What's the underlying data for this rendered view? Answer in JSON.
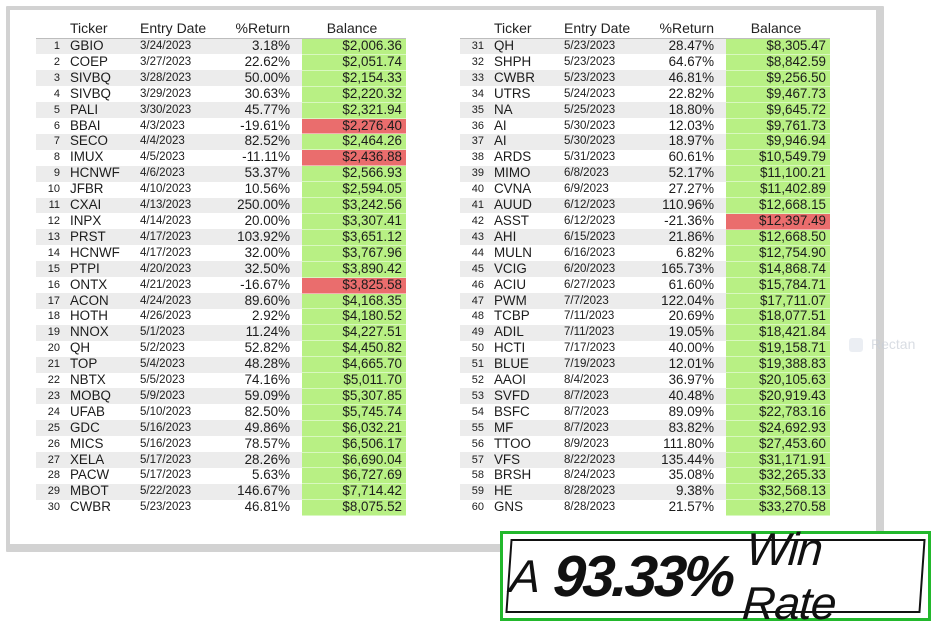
{
  "headers": {
    "ticker": "Ticker",
    "entry_date": "Entry Date",
    "return": "%Return",
    "balance": "Balance"
  },
  "left_rows": [
    {
      "n": "1",
      "ticker": "GBIO",
      "date": "3/24/2023",
      "ret": "3.18%",
      "bal": "$2,006.36",
      "status": "pos"
    },
    {
      "n": "2",
      "ticker": "COEP",
      "date": "3/27/2023",
      "ret": "22.62%",
      "bal": "$2,051.74",
      "status": "pos"
    },
    {
      "n": "3",
      "ticker": "SIVBQ",
      "date": "3/28/2023",
      "ret": "50.00%",
      "bal": "$2,154.33",
      "status": "pos"
    },
    {
      "n": "4",
      "ticker": "SIVBQ",
      "date": "3/29/2023",
      "ret": "30.63%",
      "bal": "$2,220.32",
      "status": "pos"
    },
    {
      "n": "5",
      "ticker": "PALI",
      "date": "3/30/2023",
      "ret": "45.77%",
      "bal": "$2,321.94",
      "status": "pos"
    },
    {
      "n": "6",
      "ticker": "BBAI",
      "date": "4/3/2023",
      "ret": "-19.61%",
      "bal": "$2,276.40",
      "status": "neg"
    },
    {
      "n": "7",
      "ticker": "SECO",
      "date": "4/4/2023",
      "ret": "82.52%",
      "bal": "$2,464.26",
      "status": "pos"
    },
    {
      "n": "8",
      "ticker": "IMUX",
      "date": "4/5/2023",
      "ret": "-11.11%",
      "bal": "$2,436.88",
      "status": "neg"
    },
    {
      "n": "9",
      "ticker": "HCNWF",
      "date": "4/6/2023",
      "ret": "53.37%",
      "bal": "$2,566.93",
      "status": "pos"
    },
    {
      "n": "10",
      "ticker": "JFBR",
      "date": "4/10/2023",
      "ret": "10.56%",
      "bal": "$2,594.05",
      "status": "pos"
    },
    {
      "n": "11",
      "ticker": "CXAI",
      "date": "4/13/2023",
      "ret": "250.00%",
      "bal": "$3,242.56",
      "status": "pos"
    },
    {
      "n": "12",
      "ticker": "INPX",
      "date": "4/14/2023",
      "ret": "20.00%",
      "bal": "$3,307.41",
      "status": "pos"
    },
    {
      "n": "13",
      "ticker": "PRST",
      "date": "4/17/2023",
      "ret": "103.92%",
      "bal": "$3,651.12",
      "status": "pos"
    },
    {
      "n": "14",
      "ticker": "HCNWF",
      "date": "4/17/2023",
      "ret": "32.00%",
      "bal": "$3,767.96",
      "status": "pos"
    },
    {
      "n": "15",
      "ticker": "PTPI",
      "date": "4/20/2023",
      "ret": "32.50%",
      "bal": "$3,890.42",
      "status": "pos"
    },
    {
      "n": "16",
      "ticker": "ONTX",
      "date": "4/21/2023",
      "ret": "-16.67%",
      "bal": "$3,825.58",
      "status": "neg"
    },
    {
      "n": "17",
      "ticker": "ACON",
      "date": "4/24/2023",
      "ret": "89.60%",
      "bal": "$4,168.35",
      "status": "pos"
    },
    {
      "n": "18",
      "ticker": "HOTH",
      "date": "4/26/2023",
      "ret": "2.92%",
      "bal": "$4,180.52",
      "status": "pos"
    },
    {
      "n": "19",
      "ticker": "NNOX",
      "date": "5/1/2023",
      "ret": "11.24%",
      "bal": "$4,227.51",
      "status": "pos"
    },
    {
      "n": "20",
      "ticker": "QH",
      "date": "5/2/2023",
      "ret": "52.82%",
      "bal": "$4,450.82",
      "status": "pos"
    },
    {
      "n": "21",
      "ticker": "TOP",
      "date": "5/4/2023",
      "ret": "48.28%",
      "bal": "$4,665.70",
      "status": "pos"
    },
    {
      "n": "22",
      "ticker": "NBTX",
      "date": "5/5/2023",
      "ret": "74.16%",
      "bal": "$5,011.70",
      "status": "pos"
    },
    {
      "n": "23",
      "ticker": "MOBQ",
      "date": "5/9/2023",
      "ret": "59.09%",
      "bal": "$5,307.85",
      "status": "pos"
    },
    {
      "n": "24",
      "ticker": "UFAB",
      "date": "5/10/2023",
      "ret": "82.50%",
      "bal": "$5,745.74",
      "status": "pos"
    },
    {
      "n": "25",
      "ticker": "GDC",
      "date": "5/16/2023",
      "ret": "49.86%",
      "bal": "$6,032.21",
      "status": "pos"
    },
    {
      "n": "26",
      "ticker": "MICS",
      "date": "5/16/2023",
      "ret": "78.57%",
      "bal": "$6,506.17",
      "status": "pos"
    },
    {
      "n": "27",
      "ticker": "XELA",
      "date": "5/17/2023",
      "ret": "28.26%",
      "bal": "$6,690.04",
      "status": "pos"
    },
    {
      "n": "28",
      "ticker": "PACW",
      "date": "5/17/2023",
      "ret": "5.63%",
      "bal": "$6,727.69",
      "status": "pos"
    },
    {
      "n": "29",
      "ticker": "MBOT",
      "date": "5/22/2023",
      "ret": "146.67%",
      "bal": "$7,714.42",
      "status": "pos"
    },
    {
      "n": "30",
      "ticker": "CWBR",
      "date": "5/23/2023",
      "ret": "46.81%",
      "bal": "$8,075.52",
      "status": "pos"
    }
  ],
  "right_rows": [
    {
      "n": "31",
      "ticker": "QH",
      "date": "5/23/2023",
      "ret": "28.47%",
      "bal": "$8,305.47",
      "status": "pos"
    },
    {
      "n": "32",
      "ticker": "SHPH",
      "date": "5/23/2023",
      "ret": "64.67%",
      "bal": "$8,842.59",
      "status": "pos"
    },
    {
      "n": "33",
      "ticker": "CWBR",
      "date": "5/23/2023",
      "ret": "46.81%",
      "bal": "$9,256.50",
      "status": "pos"
    },
    {
      "n": "34",
      "ticker": "UTRS",
      "date": "5/24/2023",
      "ret": "22.82%",
      "bal": "$9,467.73",
      "status": "pos"
    },
    {
      "n": "35",
      "ticker": "NA",
      "date": "5/25/2023",
      "ret": "18.80%",
      "bal": "$9,645.72",
      "status": "pos"
    },
    {
      "n": "36",
      "ticker": "AI",
      "date": "5/30/2023",
      "ret": "12.03%",
      "bal": "$9,761.73",
      "status": "pos"
    },
    {
      "n": "37",
      "ticker": "AI",
      "date": "5/30/2023",
      "ret": "18.97%",
      "bal": "$9,946.94",
      "status": "pos"
    },
    {
      "n": "38",
      "ticker": "ARDS",
      "date": "5/31/2023",
      "ret": "60.61%",
      "bal": "$10,549.79",
      "status": "pos"
    },
    {
      "n": "39",
      "ticker": "MIMO",
      "date": "6/8/2023",
      "ret": "52.17%",
      "bal": "$11,100.21",
      "status": "pos"
    },
    {
      "n": "40",
      "ticker": "CVNA",
      "date": "6/9/2023",
      "ret": "27.27%",
      "bal": "$11,402.89",
      "status": "pos"
    },
    {
      "n": "41",
      "ticker": "AUUD",
      "date": "6/12/2023",
      "ret": "110.96%",
      "bal": "$12,668.15",
      "status": "pos"
    },
    {
      "n": "42",
      "ticker": "ASST",
      "date": "6/12/2023",
      "ret": "-21.36%",
      "bal": "$12,397.49",
      "status": "neg"
    },
    {
      "n": "43",
      "ticker": "AHI",
      "date": "6/15/2023",
      "ret": "21.86%",
      "bal": "$12,668.50",
      "status": "pos"
    },
    {
      "n": "44",
      "ticker": "MULN",
      "date": "6/16/2023",
      "ret": "6.82%",
      "bal": "$12,754.90",
      "status": "pos"
    },
    {
      "n": "45",
      "ticker": "VCIG",
      "date": "6/20/2023",
      "ret": "165.73%",
      "bal": "$14,868.74",
      "status": "pos"
    },
    {
      "n": "46",
      "ticker": "ACIU",
      "date": "6/27/2023",
      "ret": "61.60%",
      "bal": "$15,784.71",
      "status": "pos"
    },
    {
      "n": "47",
      "ticker": "PWM",
      "date": "7/7/2023",
      "ret": "122.04%",
      "bal": "$17,711.07",
      "status": "pos"
    },
    {
      "n": "48",
      "ticker": "TCBP",
      "date": "7/11/2023",
      "ret": "20.69%",
      "bal": "$18,077.51",
      "status": "pos"
    },
    {
      "n": "49",
      "ticker": "ADIL",
      "date": "7/11/2023",
      "ret": "19.05%",
      "bal": "$18,421.84",
      "status": "pos"
    },
    {
      "n": "50",
      "ticker": "HCTI",
      "date": "7/17/2023",
      "ret": "40.00%",
      "bal": "$19,158.71",
      "status": "pos"
    },
    {
      "n": "51",
      "ticker": "BLUE",
      "date": "7/19/2023",
      "ret": "12.01%",
      "bal": "$19,388.83",
      "status": "pos"
    },
    {
      "n": "52",
      "ticker": "AAOI",
      "date": "8/4/2023",
      "ret": "36.97%",
      "bal": "$20,105.63",
      "status": "pos"
    },
    {
      "n": "53",
      "ticker": "SVFD",
      "date": "8/7/2023",
      "ret": "40.48%",
      "bal": "$20,919.43",
      "status": "pos"
    },
    {
      "n": "54",
      "ticker": "BSFC",
      "date": "8/7/2023",
      "ret": "89.09%",
      "bal": "$22,783.16",
      "status": "pos"
    },
    {
      "n": "55",
      "ticker": "MF",
      "date": "8/7/2023",
      "ret": "83.82%",
      "bal": "$24,692.93",
      "status": "pos"
    },
    {
      "n": "56",
      "ticker": "TTOO",
      "date": "8/9/2023",
      "ret": "111.80%",
      "bal": "$27,453.60",
      "status": "pos"
    },
    {
      "n": "57",
      "ticker": "VFS",
      "date": "8/22/2023",
      "ret": "135.44%",
      "bal": "$31,171.91",
      "status": "pos"
    },
    {
      "n": "58",
      "ticker": "BRSH",
      "date": "8/24/2023",
      "ret": "35.08%",
      "bal": "$32,265.33",
      "status": "pos"
    },
    {
      "n": "59",
      "ticker": "HE",
      "date": "8/28/2023",
      "ret": "9.38%",
      "bal": "$32,568.13",
      "status": "pos"
    },
    {
      "n": "60",
      "ticker": "GNS",
      "date": "8/28/2023",
      "ret": "21.57%",
      "bal": "$33,270.58",
      "status": "pos"
    }
  ],
  "colors": {
    "positive": "#b8f084",
    "negative": "#ea6d6d",
    "accent": "#22b82c"
  },
  "ghost_label": "Rectan",
  "banner": {
    "prefix": "A",
    "percent": "93.33%",
    "suffix": "Win Rate"
  }
}
